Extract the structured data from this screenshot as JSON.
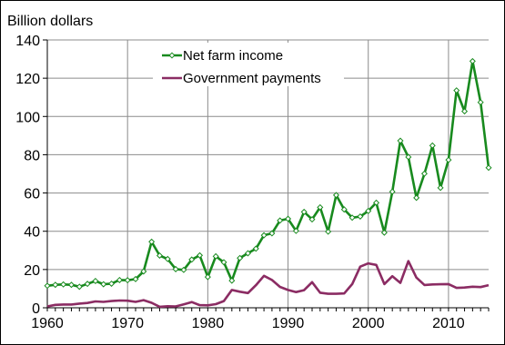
{
  "chart_data": {
    "type": "line",
    "unit_label": "Billion dollars",
    "x_ticks": [
      1960,
      1970,
      1980,
      1990,
      2000,
      2010
    ],
    "y_ticks": [
      0,
      20,
      40,
      60,
      80,
      100,
      120,
      140
    ],
    "xlim": [
      1960,
      2015
    ],
    "ylim": [
      0,
      140
    ],
    "grid": "horizontal",
    "legend": "top-center",
    "years": [
      1960,
      1961,
      1962,
      1963,
      1964,
      1965,
      1966,
      1967,
      1968,
      1969,
      1970,
      1971,
      1972,
      1973,
      1974,
      1975,
      1976,
      1977,
      1978,
      1979,
      1980,
      1981,
      1982,
      1983,
      1984,
      1985,
      1986,
      1987,
      1988,
      1989,
      1990,
      1991,
      1992,
      1993,
      1994,
      1995,
      1996,
      1997,
      1998,
      1999,
      2000,
      2001,
      2002,
      2003,
      2004,
      2005,
      2006,
      2007,
      2008,
      2009,
      2010,
      2011,
      2012,
      2013,
      2014,
      2015
    ],
    "series": [
      {
        "name": "Net farm income",
        "color": "#188a1e",
        "markers": true,
        "values": [
          11.5,
          12,
          12.2,
          12,
          11,
          12.5,
          14,
          12.3,
          12.6,
          14.5,
          14.4,
          15,
          19,
          34.5,
          27.3,
          25.5,
          20.2,
          19.8,
          25.2,
          27.4,
          16.1,
          26.9,
          23.8,
          14.2,
          26,
          28.5,
          30.9,
          37.9,
          38.9,
          45.6,
          46.5,
          40.2,
          50.1,
          46.2,
          52.5,
          39.8,
          58.9,
          51.4,
          47.1,
          47.7,
          50.6,
          54.9,
          39.3,
          60.7,
          87.3,
          78.8,
          57.5,
          70.1,
          84.8,
          62.7,
          77.3,
          113.6,
          102.7,
          128.9,
          107.4,
          73.2
        ]
      },
      {
        "name": "Government payments",
        "color": "#8b2c63",
        "markers": false,
        "values": [
          0.7,
          1.5,
          1.7,
          1.7,
          2.2,
          2.5,
          3.3,
          3.1,
          3.5,
          3.8,
          3.7,
          3.1,
          4,
          2.6,
          0.5,
          0.8,
          0.7,
          1.8,
          3,
          1.4,
          1.3,
          1.9,
          3.5,
          9.3,
          8.4,
          7.7,
          11.8,
          16.7,
          14.5,
          10.9,
          9.3,
          8.2,
          9.2,
          13.4,
          7.9,
          7.3,
          7.3,
          7.5,
          12.4,
          21.5,
          23.2,
          22.4,
          12.4,
          16.5,
          13,
          24.4,
          15.8,
          11.9,
          12.2,
          12.3,
          12.4,
          10.4,
          10.6,
          11,
          10.8,
          11.8
        ]
      }
    ]
  }
}
